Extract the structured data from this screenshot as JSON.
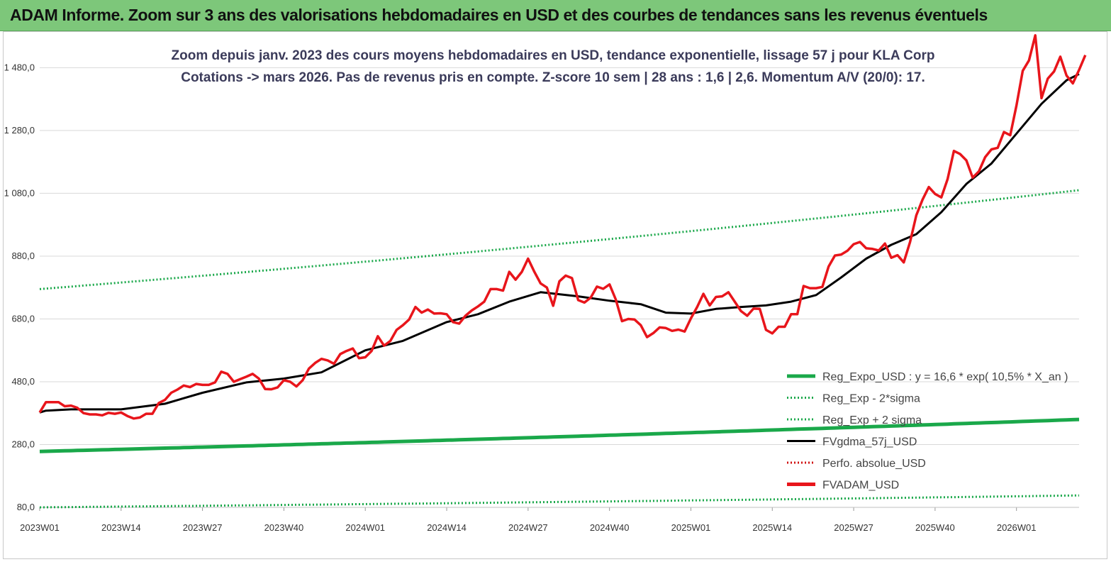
{
  "banner": {
    "title": "ADAM Informe. Zoom sur 3 ans des valorisations hebdomadaires en USD et des courbes de tendances sans les revenus éventuels"
  },
  "colors": {
    "banner_bg": "#7dc77a",
    "reg_green": "#1aa84a",
    "fvgdma": "#000000",
    "fvadam": "#e8151b",
    "perfo": "#d01010"
  },
  "chart_data": {
    "type": "line",
    "title_line1": "Zoom depuis janv. 2023 des cours moyens hebdomadaires en USD, tendance exponentielle, lissage 57 j pour KLA Corp",
    "title_line2": "Cotations -> mars 2026. Pas de revenus pris en compte. Z-score 10 sem | 28 ans : 1,6 | 2,6. Momentum A/V (20/0): 17.",
    "ylim": [
      80,
      1560
    ],
    "yticks": [
      80,
      280,
      480,
      680,
      880,
      1080,
      1280,
      1480
    ],
    "ytick_labels": [
      "80,0",
      "280,0",
      "480,0",
      "680,0",
      "880,0",
      "1 080,0",
      "1 280,0",
      "1 480,0"
    ],
    "x_count": 166,
    "xtick_labels": [
      "2023W01",
      "2023W14",
      "2023W27",
      "2023W40",
      "2024W01",
      "2024W14",
      "2024W27",
      "2024W40",
      "2025W01",
      "2025W14",
      "2025W27",
      "2025W40",
      "2026W01"
    ],
    "xtick_index": [
      0,
      13,
      26,
      39,
      52,
      65,
      78,
      91,
      104,
      117,
      130,
      143,
      156
    ],
    "legend": [
      {
        "label": "Reg_Expo_USD : y = 16,6 * exp( 10,5% *  X_an )",
        "color": "#1aa84a",
        "style": "solid-thick"
      },
      {
        "label": "Reg_Exp - 2*sigma",
        "color": "#1aa84a",
        "style": "dotted"
      },
      {
        "label": "Reg_Exp + 2 sigma",
        "color": "#1aa84a",
        "style": "dotted"
      },
      {
        "label": "FVgdma_57j_USD",
        "color": "#000000",
        "style": "solid"
      },
      {
        "label": "Perfo. absolue_USD",
        "color": "#d01010",
        "style": "dotted"
      },
      {
        "label": "FVADAM_USD",
        "color": "#e8151b",
        "style": "solid-thick"
      }
    ],
    "series": [
      {
        "name": "Reg_Expo_USD",
        "start": 258,
        "end": 360
      },
      {
        "name": "Reg_Exp - 2*sigma",
        "start": 80,
        "end": 118
      },
      {
        "name": "Reg_Exp + 2 sigma",
        "start": 775,
        "end": 1090
      },
      {
        "name": "FVgdma_57j_USD",
        "keypoints": [
          [
            0,
            382
          ],
          [
            1,
            388
          ],
          [
            5,
            392
          ],
          [
            13,
            392
          ],
          [
            20,
            410
          ],
          [
            26,
            445
          ],
          [
            33,
            478
          ],
          [
            39,
            490
          ],
          [
            45,
            510
          ],
          [
            52,
            580
          ],
          [
            58,
            610
          ],
          [
            65,
            670
          ],
          [
            70,
            695
          ],
          [
            75,
            735
          ],
          [
            80,
            765
          ],
          [
            86,
            752
          ],
          [
            91,
            738
          ],
          [
            96,
            727
          ],
          [
            100,
            700
          ],
          [
            104,
            697
          ],
          [
            108,
            712
          ],
          [
            112,
            718
          ],
          [
            116,
            723
          ],
          [
            120,
            735
          ],
          [
            124,
            756
          ],
          [
            128,
            812
          ],
          [
            132,
            872
          ],
          [
            136,
            916
          ],
          [
            140,
            950
          ],
          [
            144,
            1020
          ],
          [
            148,
            1110
          ],
          [
            152,
            1175
          ],
          [
            156,
            1270
          ],
          [
            160,
            1365
          ],
          [
            164,
            1440
          ],
          [
            166,
            1460
          ]
        ]
      },
      {
        "name": "FVADAM_USD",
        "keypoints": [
          [
            0,
            382
          ],
          [
            1,
            415
          ],
          [
            2,
            415
          ],
          [
            3,
            415
          ],
          [
            4,
            402
          ],
          [
            5,
            404
          ],
          [
            6,
            397
          ],
          [
            7,
            380
          ],
          [
            8,
            376
          ],
          [
            9,
            376
          ],
          [
            10,
            373
          ],
          [
            11,
            381
          ],
          [
            12,
            378
          ],
          [
            13,
            382
          ],
          [
            14,
            371
          ],
          [
            15,
            363
          ],
          [
            16,
            366
          ],
          [
            17,
            378
          ],
          [
            18,
            378
          ],
          [
            19,
            412
          ],
          [
            20,
            422
          ],
          [
            21,
            445
          ],
          [
            22,
            455
          ],
          [
            23,
            468
          ],
          [
            24,
            463
          ],
          [
            25,
            473
          ],
          [
            26,
            470
          ],
          [
            27,
            470
          ],
          [
            28,
            478
          ],
          [
            29,
            512
          ],
          [
            30,
            505
          ],
          [
            31,
            480
          ],
          [
            32,
            488
          ],
          [
            33,
            496
          ],
          [
            34,
            505
          ],
          [
            35,
            490
          ],
          [
            36,
            457
          ],
          [
            37,
            456
          ],
          [
            38,
            462
          ],
          [
            39,
            485
          ],
          [
            40,
            480
          ],
          [
            41,
            465
          ],
          [
            42,
            485
          ],
          [
            43,
            522
          ],
          [
            44,
            540
          ],
          [
            45,
            553
          ],
          [
            46,
            548
          ],
          [
            47,
            537
          ],
          [
            48,
            568
          ],
          [
            49,
            578
          ],
          [
            50,
            586
          ],
          [
            51,
            555
          ],
          [
            52,
            558
          ],
          [
            53,
            578
          ],
          [
            54,
            625
          ],
          [
            55,
            595
          ],
          [
            56,
            610
          ],
          [
            57,
            645
          ],
          [
            58,
            660
          ],
          [
            59,
            678
          ],
          [
            60,
            718
          ],
          [
            61,
            700
          ],
          [
            62,
            710
          ],
          [
            63,
            697
          ],
          [
            64,
            698
          ],
          [
            65,
            695
          ],
          [
            66,
            670
          ],
          [
            67,
            665
          ],
          [
            68,
            690
          ],
          [
            69,
            707
          ],
          [
            70,
            720
          ],
          [
            71,
            735
          ],
          [
            72,
            775
          ],
          [
            73,
            775
          ],
          [
            74,
            770
          ],
          [
            75,
            830
          ],
          [
            76,
            805
          ],
          [
            77,
            830
          ],
          [
            78,
            872
          ],
          [
            79,
            830
          ],
          [
            80,
            793
          ],
          [
            81,
            780
          ],
          [
            82,
            722
          ],
          [
            83,
            800
          ],
          [
            84,
            818
          ],
          [
            85,
            810
          ],
          [
            86,
            740
          ],
          [
            87,
            732
          ],
          [
            88,
            748
          ],
          [
            89,
            783
          ],
          [
            90,
            776
          ],
          [
            91,
            790
          ],
          [
            92,
            742
          ],
          [
            93,
            673
          ],
          [
            94,
            680
          ],
          [
            95,
            678
          ],
          [
            96,
            660
          ],
          [
            97,
            622
          ],
          [
            98,
            635
          ],
          [
            99,
            653
          ],
          [
            100,
            651
          ],
          [
            101,
            642
          ],
          [
            102,
            646
          ],
          [
            103,
            640
          ],
          [
            104,
            682
          ],
          [
            105,
            718
          ],
          [
            106,
            760
          ],
          [
            107,
            723
          ],
          [
            108,
            750
          ],
          [
            109,
            752
          ],
          [
            110,
            765
          ],
          [
            111,
            735
          ],
          [
            112,
            705
          ],
          [
            113,
            690
          ],
          [
            114,
            713
          ],
          [
            115,
            712
          ],
          [
            116,
            645
          ],
          [
            117,
            634
          ],
          [
            118,
            655
          ],
          [
            119,
            655
          ],
          [
            120,
            695
          ],
          [
            121,
            695
          ],
          [
            122,
            785
          ],
          [
            123,
            778
          ],
          [
            124,
            778
          ],
          [
            125,
            782
          ],
          [
            126,
            847
          ],
          [
            127,
            882
          ],
          [
            128,
            885
          ],
          [
            129,
            897
          ],
          [
            130,
            918
          ],
          [
            131,
            925
          ],
          [
            132,
            905
          ],
          [
            133,
            903
          ],
          [
            134,
            898
          ],
          [
            135,
            920
          ],
          [
            136,
            875
          ],
          [
            137,
            883
          ],
          [
            138,
            860
          ],
          [
            139,
            925
          ],
          [
            140,
            1010
          ],
          [
            141,
            1060
          ],
          [
            142,
            1100
          ],
          [
            143,
            1078
          ],
          [
            144,
            1067
          ],
          [
            145,
            1125
          ],
          [
            146,
            1215
          ],
          [
            147,
            1205
          ],
          [
            148,
            1185
          ],
          [
            149,
            1130
          ],
          [
            150,
            1150
          ],
          [
            151,
            1195
          ],
          [
            152,
            1220
          ],
          [
            153,
            1225
          ],
          [
            154,
            1275
          ],
          [
            155,
            1265
          ],
          [
            156,
            1360
          ],
          [
            157,
            1470
          ],
          [
            158,
            1503
          ],
          [
            159,
            1583
          ],
          [
            160,
            1383
          ],
          [
            161,
            1445
          ],
          [
            162,
            1468
          ],
          [
            163,
            1515
          ],
          [
            164,
            1455
          ],
          [
            165,
            1430
          ],
          [
            166,
            1473
          ],
          [
            167,
            1520
          ]
        ]
      }
    ]
  }
}
